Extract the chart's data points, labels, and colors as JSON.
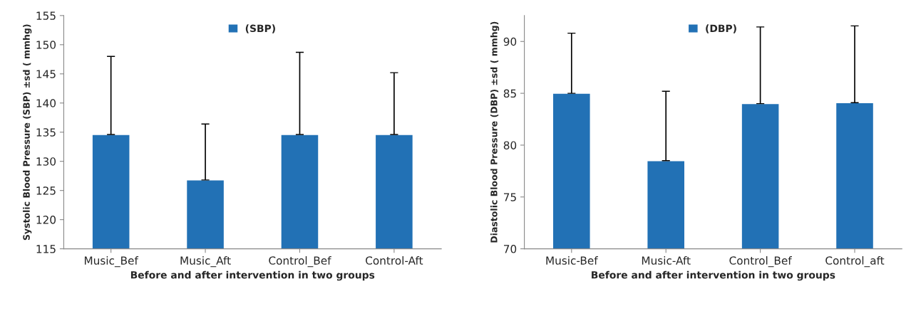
{
  "chart_data": [
    {
      "type": "bar",
      "xlabel": "Before and after intervention in two groups",
      "ylabel": "Systolic Blood Pressure (SBP) ±sd ( mmhg)",
      "categories": [
        "Music_Bef",
        "Music_Aft",
        "Control_Bef",
        "Control-Aft"
      ],
      "series": [
        {
          "name": "(SBP)",
          "color": "#2271b5",
          "values": [
            134.6,
            126.8,
            134.6,
            134.6
          ],
          "errors": [
            [
              134.6,
              148.0
            ],
            [
              126.8,
              136.4
            ],
            [
              134.6,
              148.7
            ],
            [
              134.6,
              145.2
            ]
          ]
        }
      ],
      "ylim": [
        115,
        155
      ],
      "yticks": [
        115,
        120,
        125,
        130,
        135,
        140,
        145,
        150,
        155
      ],
      "grid": false,
      "legend": "top"
    },
    {
      "type": "bar",
      "xlabel": "Before and after intervention in two groups",
      "ylabel": "Diastolic Blood Pressure (DBP) ±sd ( mmhg)",
      "categories": [
        "Music-Bef",
        "Music-Aft",
        "Control_Bef",
        "Control_aft"
      ],
      "series": [
        {
          "name": "(DBP)",
          "color": "#2271b5",
          "values": [
            85.0,
            78.5,
            84.0,
            84.1
          ],
          "errors": [
            [
              85.0,
              90.8
            ],
            [
              78.5,
              85.2
            ],
            [
              84.0,
              91.4
            ],
            [
              84.1,
              91.5
            ]
          ]
        }
      ],
      "ylim": [
        70,
        92.5
      ],
      "yticks": [
        70,
        75,
        80,
        85,
        90
      ],
      "grid": false,
      "legend": "top"
    }
  ]
}
